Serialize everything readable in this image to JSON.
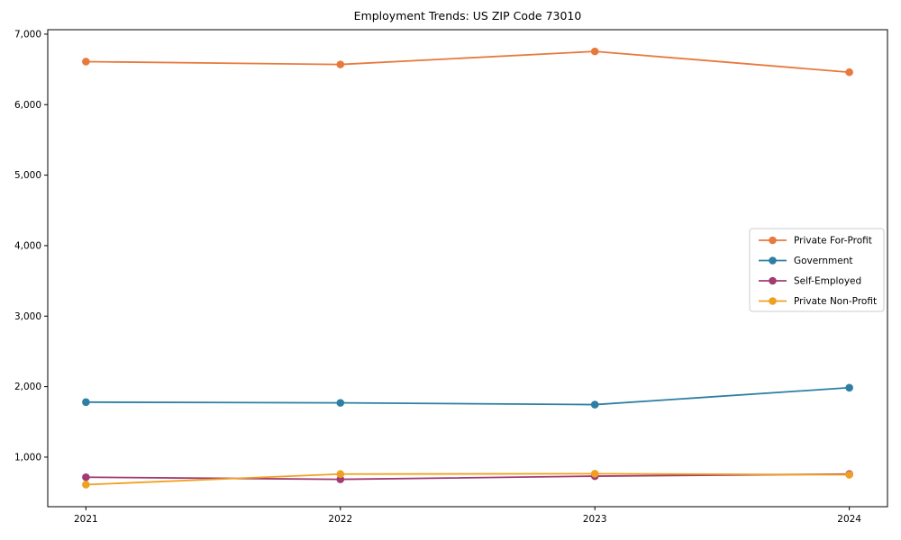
{
  "chart_data": {
    "type": "line",
    "title": "Employment Trends: US ZIP Code 73010",
    "xlabel": "",
    "ylabel": "",
    "x": [
      2021,
      2022,
      2023,
      2024
    ],
    "x_tick_labels": [
      "2021",
      "2022",
      "2023",
      "2024"
    ],
    "yticks": [
      1000,
      2000,
      3000,
      4000,
      5000,
      6000,
      7000
    ],
    "ytick_labels": [
      "1,000",
      "2,000",
      "3,000",
      "4,000",
      "5,000",
      "6,000",
      "7,000"
    ],
    "xlim": [
      2020.85,
      2024.15
    ],
    "ylim": [
      297,
      7063
    ],
    "grid": false,
    "legend_position": "center right",
    "series": [
      {
        "name": "Private For-Profit",
        "color": "#E8793D",
        "values": [
          6610,
          6570,
          6755,
          6460
        ]
      },
      {
        "name": "Government",
        "color": "#2E7FA3",
        "values": [
          1780,
          1770,
          1745,
          1985
        ]
      },
      {
        "name": "Self-Employed",
        "color": "#A23B72",
        "values": [
          715,
          685,
          730,
          760
        ]
      },
      {
        "name": "Private Non-Profit",
        "color": "#F0A020",
        "values": [
          610,
          760,
          765,
          750
        ]
      }
    ],
    "marker": "circle",
    "axis_color": "#000000",
    "legend_border_color": "#cccccc",
    "background_color": "#ffffff"
  }
}
